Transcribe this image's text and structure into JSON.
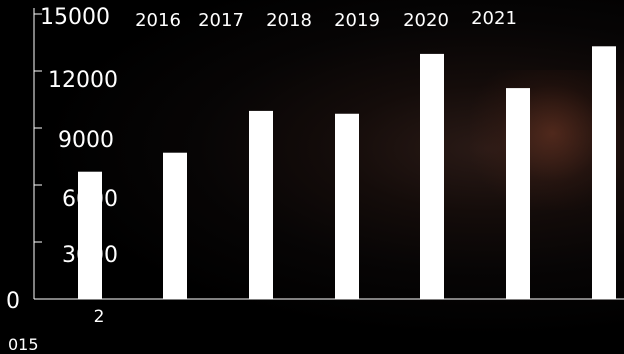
{
  "chart_data": {
    "type": "bar",
    "categories": [
      "2015",
      "2016",
      "2017",
      "2018",
      "2019",
      "2020",
      "2021"
    ],
    "values": [
      6700,
      7700,
      9900,
      9750,
      12900,
      11100,
      13300
    ],
    "extra_value": 13300,
    "ylim": [
      0,
      15000
    ],
    "yticks": [
      "0",
      "3000",
      "6000",
      "9000",
      "12000",
      "15000"
    ],
    "top_labels": [
      "2016",
      "2017",
      "2018",
      "2019",
      "2020",
      "2021"
    ],
    "bottom_label_a": "2",
    "bottom_label_b": "015",
    "bar_color": "#ffffff",
    "axis_color": "#ffffff"
  }
}
